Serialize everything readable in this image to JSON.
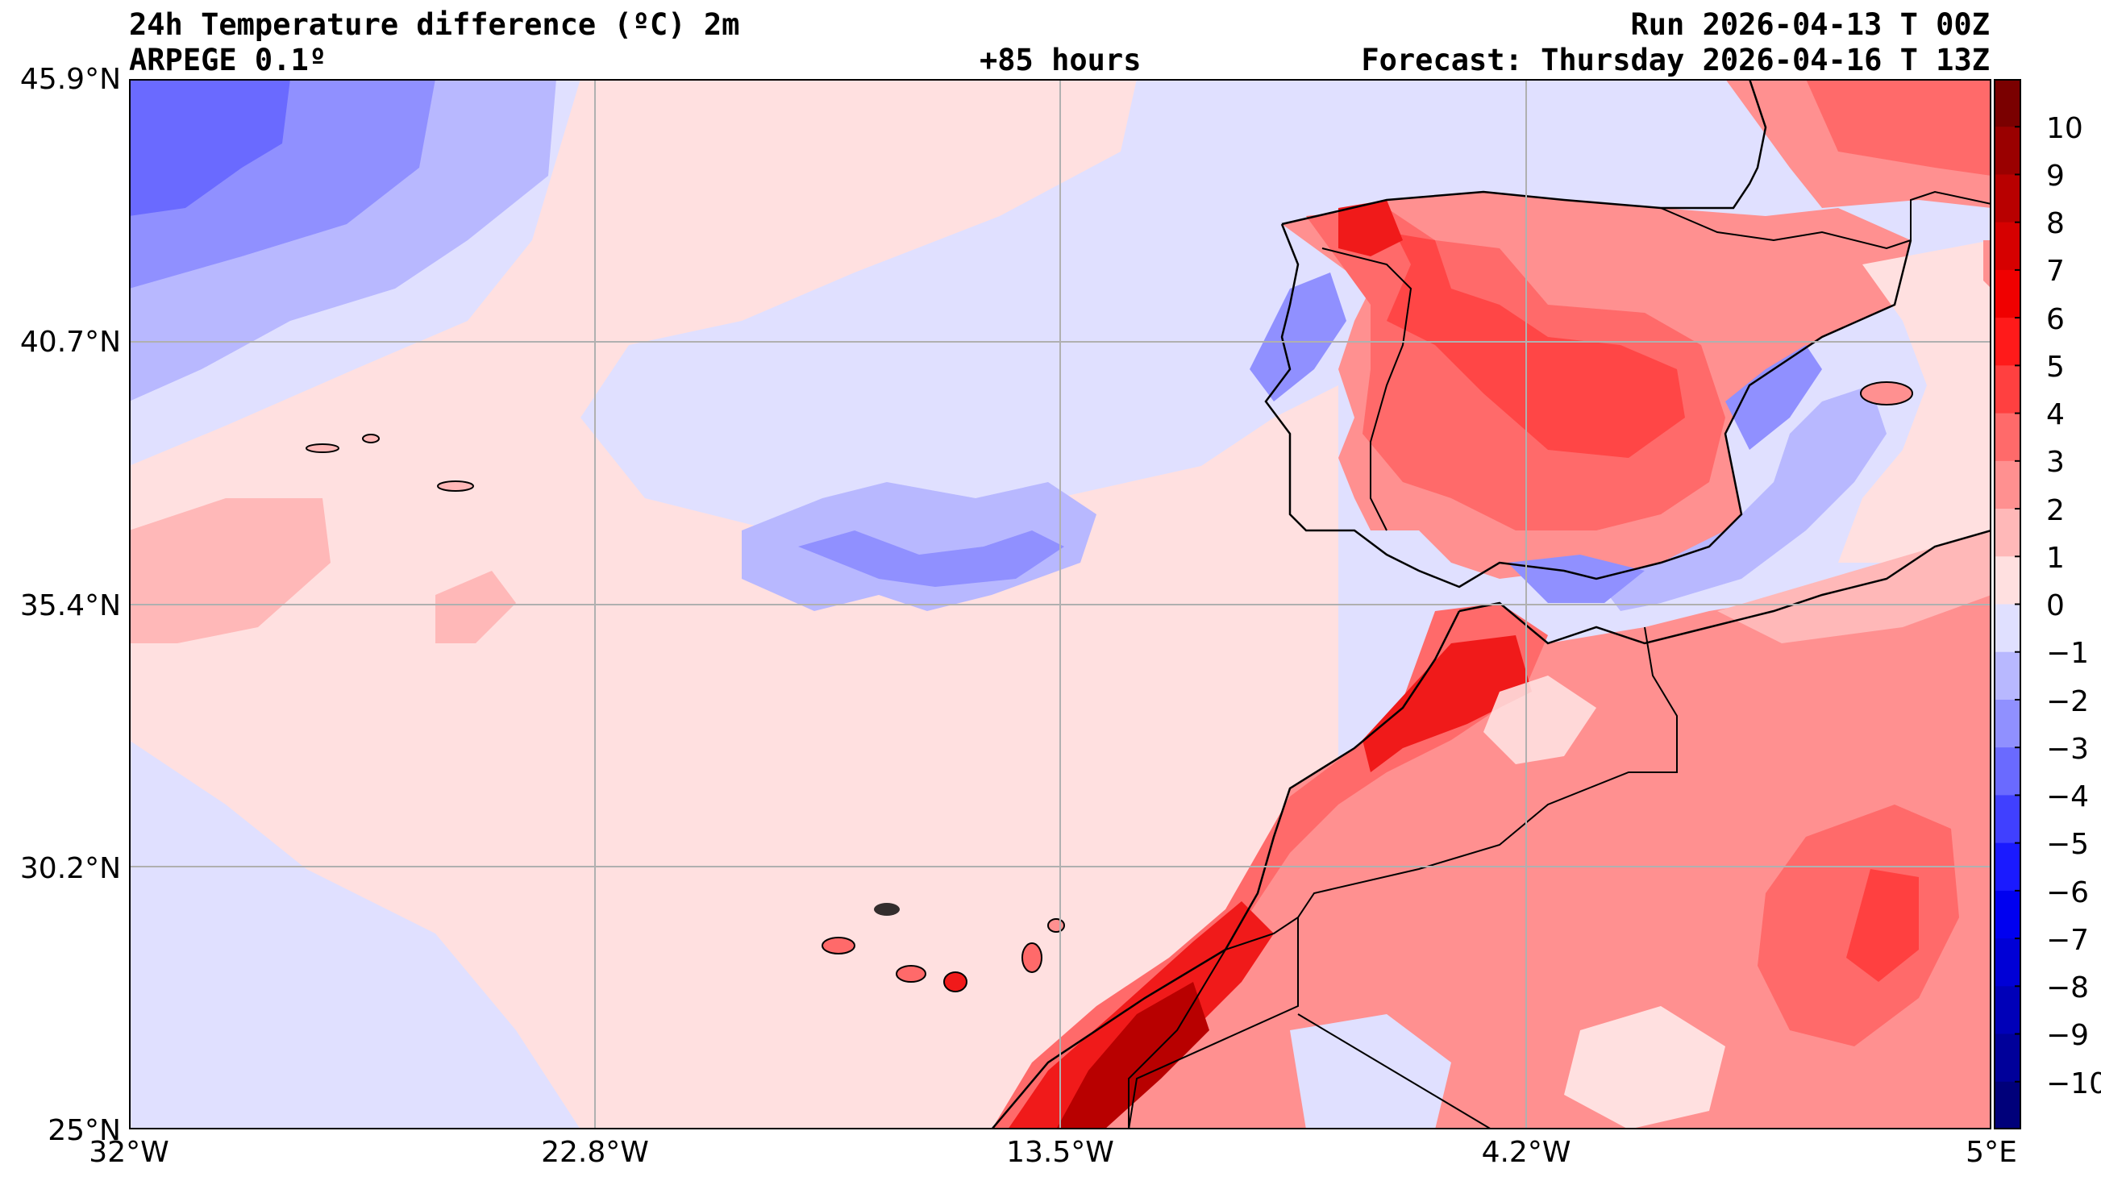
{
  "header": {
    "title": "24h Temperature difference (ºC) 2m",
    "model": "ARPEGE 0.1º",
    "lead": "+85 hours",
    "run": "Run 2026-04-13 T 00Z",
    "forecast": "Forecast: Thursday 2026-04-16 T 13Z"
  },
  "axes": {
    "lat_ticks": [
      "45.9°N",
      "40.7°N",
      "35.4°N",
      "30.2°N",
      "25°N"
    ],
    "lon_ticks": [
      "32°W",
      "22.8°W",
      "13.5°W",
      "4.2°W",
      "5°E"
    ]
  },
  "colorbar": {
    "ticks": [
      "10",
      "9",
      "8",
      "7",
      "6",
      "5",
      "4",
      "3",
      "2",
      "1",
      "0",
      "−1",
      "−2",
      "−3",
      "−4",
      "−5",
      "−6",
      "−7",
      "−8",
      "−9",
      "−10"
    ],
    "colors": [
      "#7a0000",
      "#9a0000",
      "#b80000",
      "#d60000",
      "#f00000",
      "#ff1a1a",
      "#ff4040",
      "#ff6a6a",
      "#ff9090",
      "#ffb8b8",
      "#ffe0e0",
      "#e0e0ff",
      "#b8b8ff",
      "#9090ff",
      "#6a6aff",
      "#4040ff",
      "#1a1aff",
      "#0000f0",
      "#0000d6",
      "#0000b8",
      "#00009a",
      "#00007a"
    ]
  },
  "map": {
    "colors": {
      "land_warm": "#ff9090",
      "land_hot": "#ff5a5a",
      "land_hotter": "#f01a1a",
      "land_hottest": "#b80000",
      "sea_slight_warm": "#ffe0e0",
      "sea_slight_cool": "#e0e0ff",
      "cool": "#b8b8ff",
      "cooler": "#9090ff",
      "coolest": "#6a6aff",
      "grid": "#b0b0b0",
      "coast": "#000000"
    }
  }
}
